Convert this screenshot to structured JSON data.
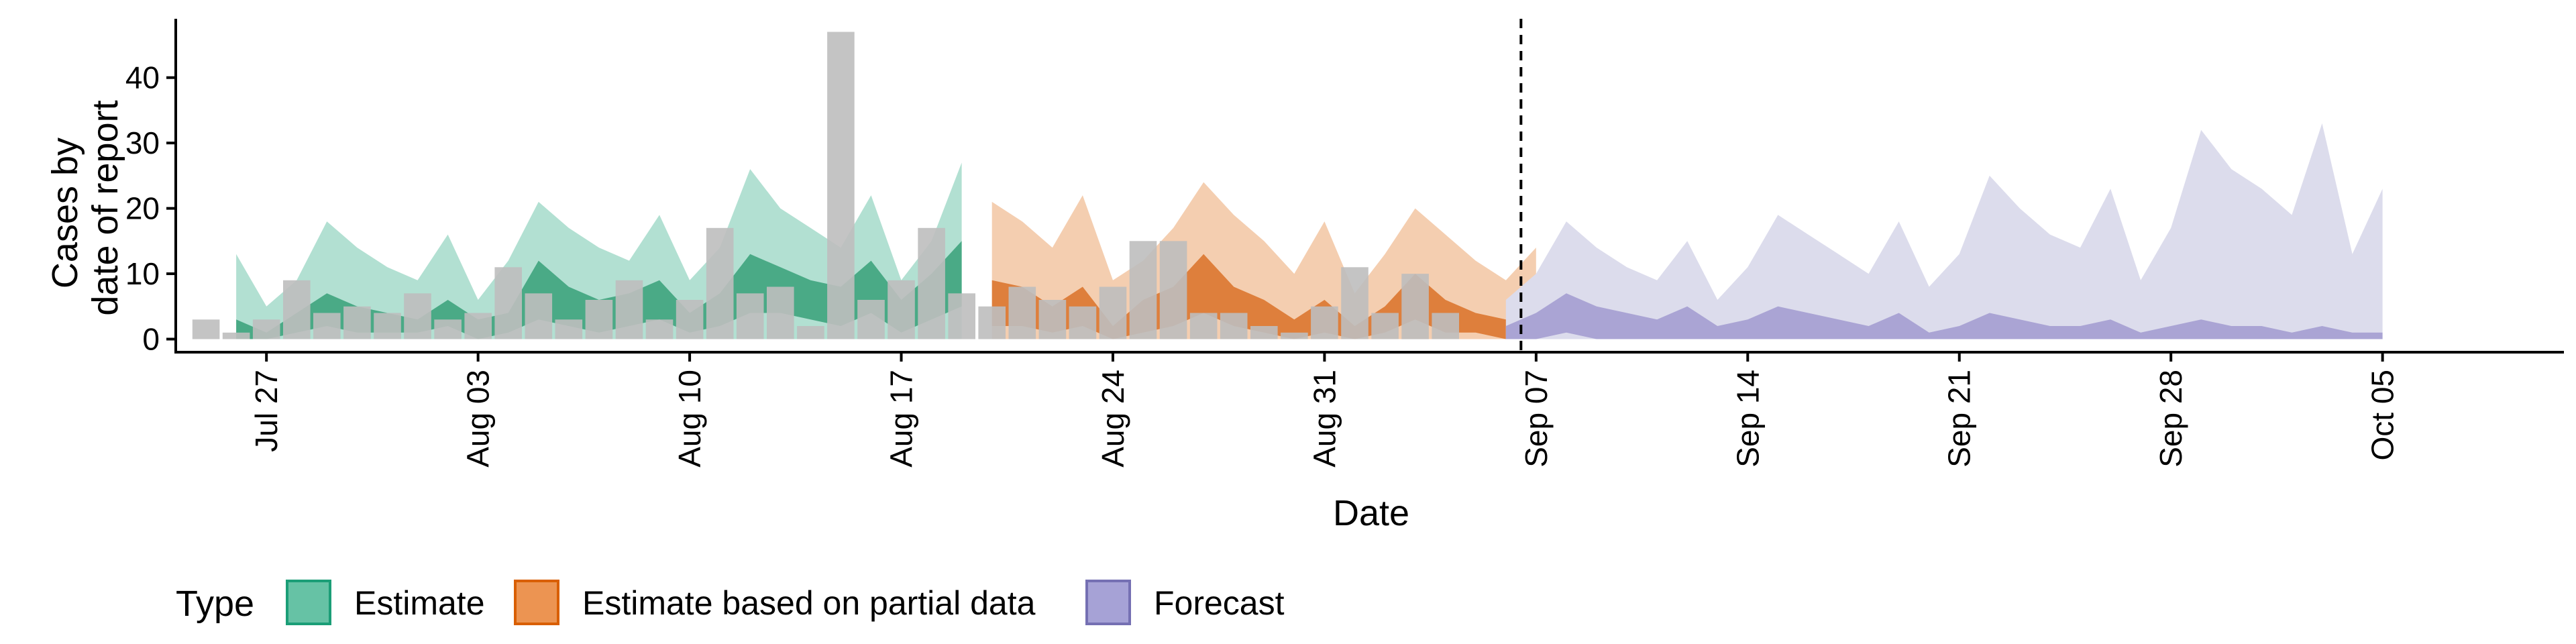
{
  "chart_data": {
    "type": "area",
    "title": "",
    "xlabel": "Date",
    "ylabel_lines": [
      "Cases by",
      "date of report"
    ],
    "x_start": "2020-07-24",
    "x_end": "2020-10-11",
    "ylim": [
      -2,
      49
    ],
    "x_ticks": [
      {
        "label": "Jul 27",
        "date": "2020-07-27"
      },
      {
        "label": "Aug 03",
        "date": "2020-08-03"
      },
      {
        "label": "Aug 10",
        "date": "2020-08-10"
      },
      {
        "label": "Aug 17",
        "date": "2020-08-17"
      },
      {
        "label": "Aug 24",
        "date": "2020-08-24"
      },
      {
        "label": "Aug 31",
        "date": "2020-08-31"
      },
      {
        "label": "Sep 07",
        "date": "2020-09-07"
      },
      {
        "label": "Sep 14",
        "date": "2020-09-14"
      },
      {
        "label": "Sep 21",
        "date": "2020-09-21"
      },
      {
        "label": "Sep 28",
        "date": "2020-09-28"
      },
      {
        "label": "Oct 05",
        "date": "2020-10-05"
      }
    ],
    "y_ticks": [
      {
        "label": "0",
        "value": 0
      },
      {
        "label": "10",
        "value": 10
      },
      {
        "label": "20",
        "value": 20
      },
      {
        "label": "30",
        "value": 30
      },
      {
        "label": "40",
        "value": 40
      }
    ],
    "divider_date": "2020-09-06",
    "observed_start": "2020-07-25",
    "observed_cases": [
      3,
      1,
      3,
      9,
      4,
      5,
      4,
      7,
      3,
      4,
      11,
      7,
      3,
      6,
      9,
      3,
      6,
      17,
      7,
      8,
      2,
      47,
      6,
      9,
      17,
      7,
      5,
      8,
      6,
      5,
      8,
      15,
      15,
      4,
      4,
      2,
      1,
      5,
      11,
      4,
      10,
      4
    ],
    "bar_color": "#bebebe",
    "legend": {
      "title": "Type",
      "placement": "bottom",
      "items": [
        {
          "label": "Estimate",
          "fill": "#66c2a5",
          "stroke": "#1b9e77"
        },
        {
          "label": "Estimate based on partial data",
          "fill": "#ec9452",
          "stroke": "#d95f02"
        },
        {
          "label": "Forecast",
          "fill": "#a6a2d6",
          "stroke": "#7570b3"
        }
      ]
    },
    "series": [
      {
        "type_index": 0,
        "start": "2020-07-26",
        "outer_color": "#b2e0d2",
        "inner_color": "#4aaa86",
        "upper90": [
          13,
          5,
          9,
          18,
          14,
          11,
          9,
          16,
          6,
          12,
          21,
          17,
          14,
          12,
          19,
          9,
          14,
          26,
          20,
          17,
          14,
          22,
          9,
          15,
          27
        ],
        "lower90": [
          0,
          0,
          0,
          0,
          0,
          0,
          0,
          0,
          0,
          0,
          0,
          0,
          0,
          0,
          0,
          0,
          0,
          0,
          0,
          0,
          0,
          0,
          0,
          0,
          0
        ],
        "upper50": [
          3,
          1,
          4,
          7,
          5,
          4,
          3,
          6,
          3,
          4,
          12,
          8,
          6,
          7,
          9,
          4,
          7,
          13,
          11,
          9,
          8,
          12,
          6,
          10,
          15
        ],
        "lower50": [
          0,
          0,
          1,
          2,
          1,
          1,
          1,
          2,
          0,
          1,
          3,
          2,
          1,
          2,
          3,
          1,
          2,
          4,
          4,
          3,
          2,
          4,
          1,
          3,
          5
        ]
      },
      {
        "type_index": 1,
        "start": "2020-08-20",
        "outer_color": "#f4ceb0",
        "inner_color": "#de7f3c",
        "upper90": [
          21,
          18,
          14,
          22,
          9,
          12,
          17,
          24,
          19,
          15,
          10,
          18,
          7,
          13,
          20,
          16,
          12,
          9,
          14
        ],
        "lower90": [
          0,
          0,
          0,
          0,
          0,
          0,
          0,
          0,
          0,
          0,
          0,
          0,
          0,
          0,
          0,
          0,
          0,
          0,
          0
        ],
        "upper50": [
          9,
          8,
          5,
          8,
          2,
          6,
          8,
          13,
          8,
          6,
          3,
          6,
          2,
          5,
          10,
          6,
          4,
          3,
          6
        ],
        "lower50": [
          2,
          2,
          1,
          2,
          0,
          1,
          2,
          4,
          2,
          1,
          0,
          1,
          0,
          1,
          3,
          1,
          1,
          0,
          1
        ]
      },
      {
        "type_index": 2,
        "start": "2020-09-06",
        "outer_color": "#dcdcec",
        "inner_color": "#aaa4d4",
        "upper90": [
          6,
          10,
          18,
          14,
          11,
          9,
          15,
          6,
          11,
          19,
          16,
          13,
          10,
          18,
          8,
          13,
          25,
          20,
          16,
          14,
          23,
          9,
          17,
          32,
          26,
          23,
          19,
          33,
          13,
          23
        ],
        "lower90": [
          0,
          0,
          0,
          0,
          0,
          0,
          0,
          0,
          0,
          0,
          0,
          0,
          0,
          0,
          0,
          0,
          0,
          0,
          0,
          0,
          0,
          0,
          0,
          0,
          0,
          0,
          0,
          0,
          0,
          0
        ],
        "upper50": [
          2,
          4,
          7,
          5,
          4,
          3,
          5,
          2,
          3,
          5,
          4,
          3,
          2,
          4,
          1,
          2,
          4,
          3,
          2,
          2,
          3,
          1,
          2,
          3,
          2,
          2,
          1,
          2,
          1,
          1
        ],
        "lower50": [
          0,
          0,
          1,
          0,
          0,
          0,
          0,
          0,
          0,
          0,
          0,
          0,
          0,
          0,
          0,
          0,
          0,
          0,
          0,
          0,
          0,
          0,
          0,
          0,
          0,
          0,
          0,
          0,
          0,
          0
        ]
      }
    ]
  }
}
